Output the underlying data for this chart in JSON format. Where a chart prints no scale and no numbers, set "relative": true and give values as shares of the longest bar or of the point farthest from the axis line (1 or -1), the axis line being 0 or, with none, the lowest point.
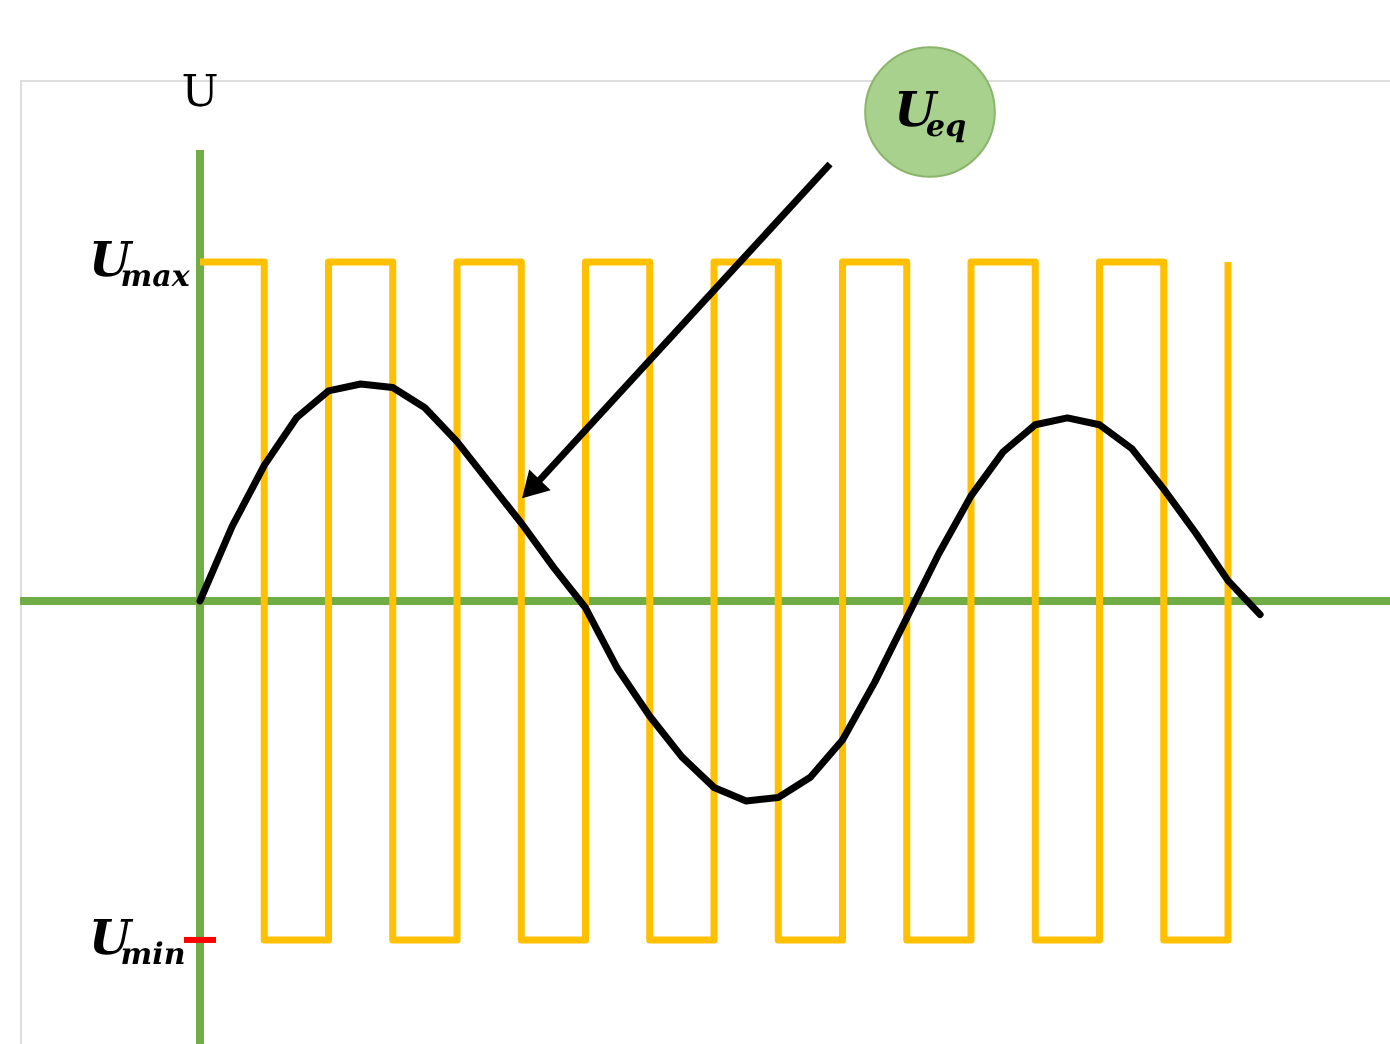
{
  "chart_data": {
    "type": "step",
    "ylabel": "U",
    "categories": [
      null,
      null,
      null,
      null,
      null,
      null,
      null,
      null,
      null,
      null,
      null,
      null,
      null,
      null,
      null,
      null,
      null,
      null,
      null,
      null,
      null,
      null,
      null,
      null,
      null,
      null,
      null,
      null,
      null,
      null,
      null,
      null,
      null,
      null
    ],
    "series": [
      {
        "color": "#ffc000",
        "values": [
          1,
          1,
          -1,
          -1,
          1,
          1,
          -1,
          -1,
          1,
          1,
          -1,
          -1,
          1,
          1,
          -1,
          -1,
          1,
          1,
          -1,
          -1,
          1,
          1,
          -1,
          -1,
          1,
          1,
          -1,
          -1,
          1,
          1,
          -1,
          -1,
          1,
          null
        ]
      },
      {
        "type": "line",
        "color": "#000000",
        "values": [
          0,
          0.22,
          0.4,
          0.54,
          0.62,
          0.64,
          0.63,
          0.57,
          0.47,
          0.35,
          0.23,
          0.1,
          -0.02,
          -0.2,
          -0.34,
          -0.46,
          -0.55,
          -0.59,
          -0.58,
          -0.52,
          -0.41,
          -0.24,
          -0.05,
          0.14,
          0.31,
          0.44,
          0.52,
          0.54,
          0.52,
          0.45,
          0.33,
          0.2,
          0.06,
          -0.04
        ]
      }
    ],
    "relative": true,
    "ref_lines": [
      {
        "axis": "y",
        "value": 0,
        "color": "#70ad47"
      }
    ],
    "annotations": [
      "U$_{max}$",
      "U$_{min}$",
      "U$_{eq}$"
    ]
  }
}
